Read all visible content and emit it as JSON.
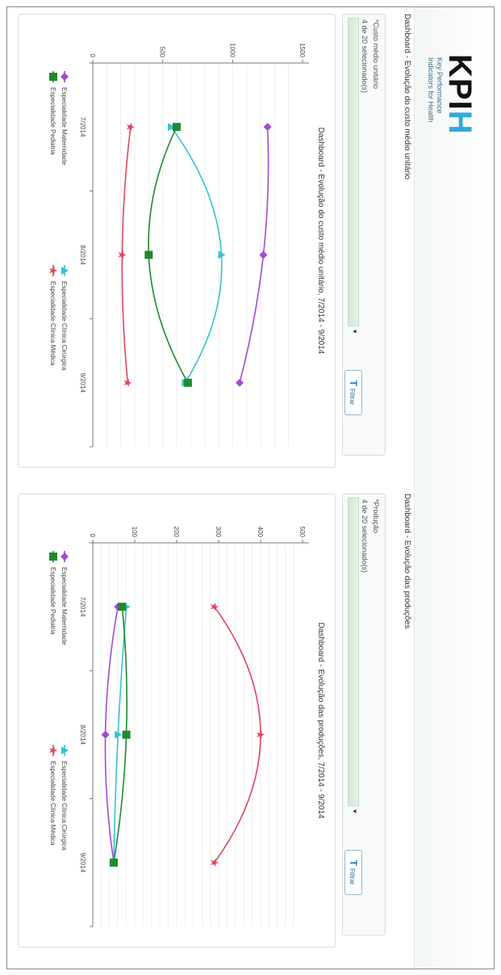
{
  "app": {
    "logo_text": "KPI",
    "logo_accent": "H",
    "logo_subtitle_1": "Key Performance",
    "logo_subtitle_2": "Indicators for Health"
  },
  "chart_data": [
    {
      "type": "line",
      "panel_title": "Dashboard - Evolução do custo médio unitário",
      "filter": {
        "label": "*Custo médio unitário",
        "count": "4 de 20 selecionado(s)",
        "button": "Filtrar"
      },
      "title": "Dashboard - Evolução do custo médio unitário, 7/2014 - 9/2014",
      "categories": [
        "7/2014",
        "8/2014",
        "9/2014"
      ],
      "ylim": [
        0,
        1500
      ],
      "yticks": [
        0,
        500,
        1000,
        1500
      ],
      "series": [
        {
          "name": "Especialidade Maternidade",
          "color": "#a24bd1",
          "marker": "diamond",
          "values": [
            1250,
            1220,
            1050
          ]
        },
        {
          "name": "Especialidade Clínica Cirúrgica",
          "color": "#37c2d4",
          "marker": "tri",
          "values": [
            560,
            920,
            660
          ]
        },
        {
          "name": "Especialidade Pediatria",
          "color": "#1f8a2e",
          "marker": "square",
          "values": [
            600,
            400,
            680
          ]
        },
        {
          "name": "Especialidade Clínica Médica",
          "color": "#e0475f",
          "marker": "star",
          "values": [
            270,
            210,
            250
          ]
        }
      ]
    },
    {
      "type": "line",
      "panel_title": "Dashboard - Evolução das produções",
      "filter": {
        "label": "*Produção",
        "count": "4 de 20 selecionado(s)",
        "button": "Filtrar"
      },
      "title": "Dashboard - Evolução das produções, 7/2014 - 9/2014",
      "categories": [
        "7/2014",
        "8/2014",
        "9/2014"
      ],
      "ylim": [
        0,
        500
      ],
      "yticks": [
        0,
        100,
        200,
        300,
        400,
        500
      ],
      "series": [
        {
          "name": "Especialidade Maternidade",
          "color": "#a24bd1",
          "marker": "diamond",
          "values": [
            60,
            30,
            50
          ]
        },
        {
          "name": "Especialidade Clínica Cirúrgica",
          "color": "#37c2d4",
          "marker": "tri",
          "values": [
            80,
            60,
            50
          ]
        },
        {
          "name": "Especialidade Pediatria",
          "color": "#1f8a2e",
          "marker": "square",
          "values": [
            70,
            80,
            50
          ]
        },
        {
          "name": "Especialidade Clínica Médica",
          "color": "#e0475f",
          "marker": "star",
          "values": [
            290,
            400,
            290
          ]
        }
      ]
    }
  ]
}
